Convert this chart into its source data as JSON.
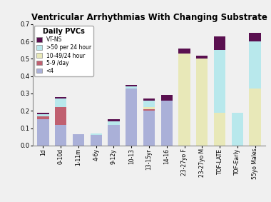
{
  "title": "Ventricular Arrhythmias With Changing Substrate",
  "categories": [
    "1d",
    "0-10d",
    "1-11m",
    "4-6y",
    "9-12y",
    "10-13",
    "13-15yr",
    "14-16",
    "23-27yo F",
    "23-27yo M",
    "TOF-LATE",
    "TOF-Early",
    "55yo Males"
  ],
  "legend_title": "Daily PVCs",
  "segments": {
    "lt4": [
      0.15,
      0.12,
      0.065,
      0.06,
      0.12,
      0.33,
      0.2,
      0.26,
      0.0,
      0.0,
      0.0,
      0.0,
      0.0
    ],
    "s5_9": [
      0.02,
      0.1,
      0.0,
      0.0,
      0.0,
      0.0,
      0.01,
      0.0,
      0.0,
      0.0,
      0.0,
      0.0,
      0.0
    ],
    "s10_49": [
      0.0,
      0.0,
      0.0,
      0.0,
      0.0,
      0.0,
      0.01,
      0.0,
      0.53,
      0.5,
      0.19,
      0.0,
      0.33
    ],
    "gt50": [
      0.01,
      0.05,
      0.0,
      0.01,
      0.02,
      0.01,
      0.04,
      0.0,
      0.0,
      0.0,
      0.36,
      0.19,
      0.27
    ],
    "vtns": [
      0.01,
      0.01,
      0.0,
      0.0,
      0.01,
      0.01,
      0.01,
      0.03,
      0.03,
      0.02,
      0.08,
      0.0,
      0.05
    ]
  },
  "colors": {
    "lt4": "#aab0d8",
    "s5_9": "#c06070",
    "s10_49": "#e8e8b8",
    "gt50": "#b8e8ec",
    "vtns": "#5a1050"
  },
  "legend_labels": {
    "vtns": "VT-NS",
    "gt50": ">50 per 24 hour",
    "s10_49": "10-49/24 hour",
    "s5_9": "5-9 /day",
    "lt4": "<4"
  },
  "ylim": [
    0,
    0.7
  ],
  "yticks": [
    0,
    0.1,
    0.2,
    0.3,
    0.4,
    0.5,
    0.6,
    0.7
  ],
  "background_color": "#f0f0f0",
  "title_fontsize": 8.5
}
